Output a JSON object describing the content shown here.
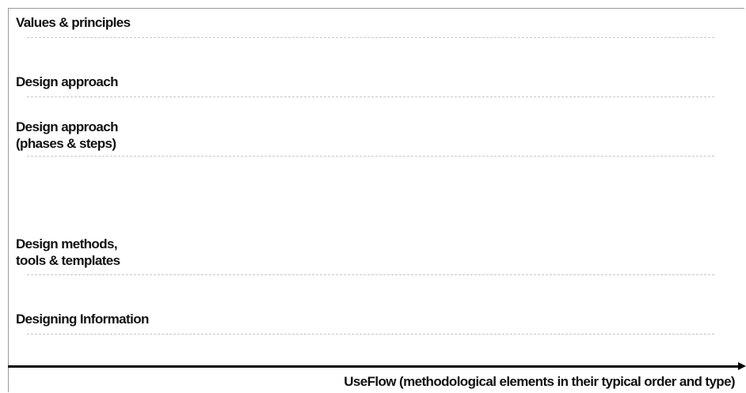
{
  "rows": [
    {
      "label": "Values & principles"
    },
    {
      "label": "Design approach"
    },
    {
      "label": "Design approach\n(phases & steps)"
    },
    {
      "label": "Design methods,\ntools & templates"
    },
    {
      "label": "Designing Information"
    }
  ],
  "axis": {
    "label": "UseFlow (methodological elements in their typical order and type)"
  }
}
